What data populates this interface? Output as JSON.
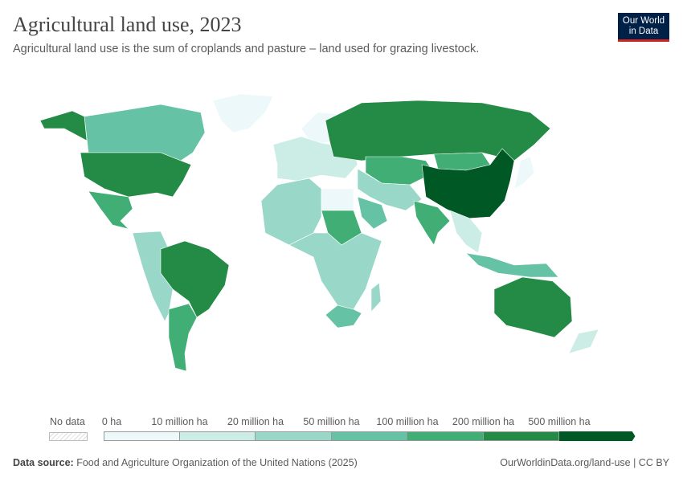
{
  "header": {
    "title": "Agricultural land use, 2023",
    "subtitle": "Agricultural land use is the sum of croplands and pasture – land used for grazing livestock.",
    "logo": "Our World in Data"
  },
  "legend": {
    "no_data_label": "No data",
    "ticks": [
      "0 ha",
      "10 million ha",
      "20 million ha",
      "50 million ha",
      "100 million ha",
      "200 million ha",
      "500 million ha"
    ],
    "colors": [
      "#edf8fb",
      "#ccece6",
      "#99d8c9",
      "#66c2a4",
      "#41ae76",
      "#238b45",
      "#005824"
    ]
  },
  "map": {
    "country_colors": {
      "Canada": "#66c2a4",
      "United States": "#238b45",
      "Mexico": "#41ae76",
      "Greenland": "#edf8fb",
      "Brazil": "#238b45",
      "Argentina": "#41ae76",
      "Russia": "#238b45",
      "China": "#005824",
      "Kazakhstan": "#41ae76",
      "Mongolia": "#41ae76",
      "India": "#41ae76",
      "Australia": "#238b45",
      "Saudi Arabia": "#66c2a4",
      "Sudan": "#41ae76",
      "South Africa": "#66c2a4",
      "Europe": "#ccece6",
      "North Africa": "#99d8c9",
      "Central Africa": "#99d8c9",
      "Indonesia": "#66c2a4",
      "Iran Region": "#99d8c9",
      "Andes": "#99d8c9",
      "Southeast Asia": "#ccece6",
      "Nordics": "#edf8fb",
      "Egypt": "#edf8fb",
      "Madagascar": "#99d8c9",
      "New Zealand": "#ccece6",
      "Japan": "#edf8fb"
    }
  },
  "footer": {
    "source_label": "Data source:",
    "source": "Food and Agriculture Organization of the United Nations (2025)",
    "url": "OurWorldinData.org/land-use | CC BY"
  }
}
